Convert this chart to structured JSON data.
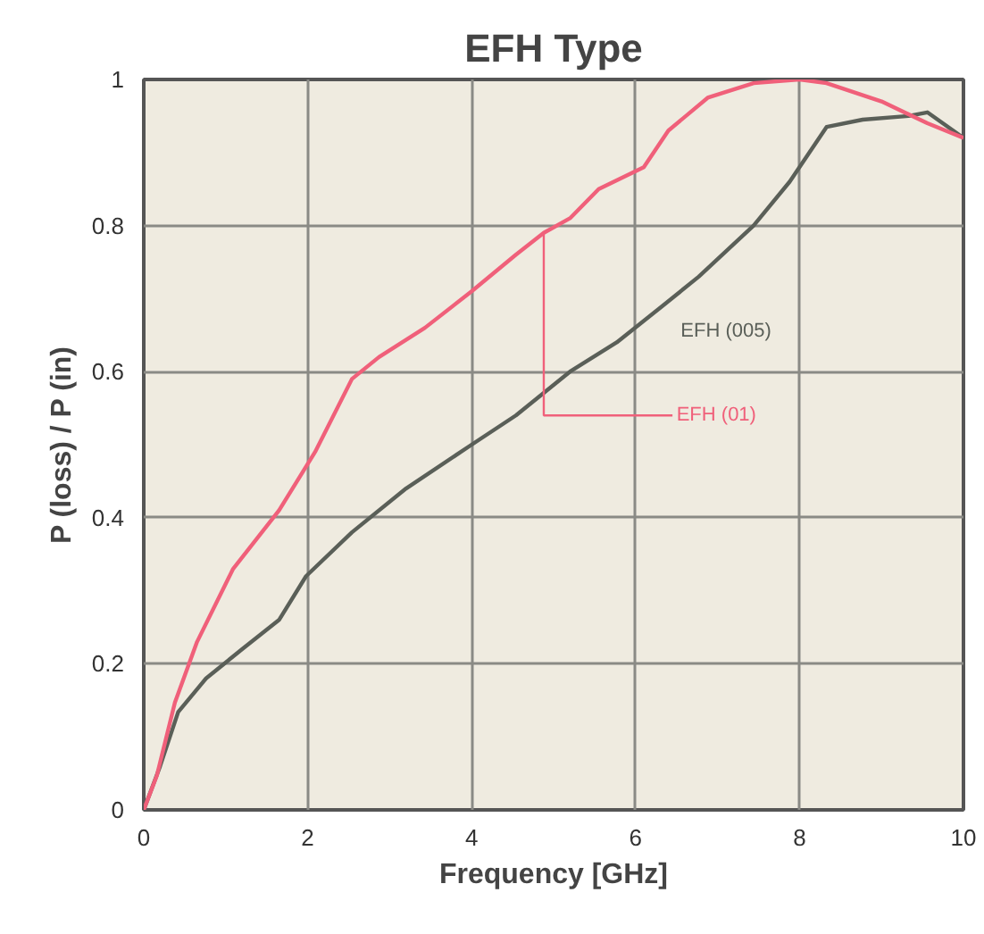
{
  "chart_data": {
    "type": "line",
    "title": "EFH Type",
    "xlabel": "Frequency [GHz]",
    "ylabel": "P (loss) / P (in)",
    "xlim": [
      0,
      10
    ],
    "ylim": [
      0,
      1
    ],
    "xticks": [
      0,
      2,
      4,
      6,
      8,
      10
    ],
    "yticks": [
      0,
      0.2,
      0.4,
      0.6,
      0.8,
      1
    ],
    "grid": true,
    "legend": false,
    "marker": "none",
    "line_style": "solid",
    "series": [
      {
        "name": "EFH (005)",
        "color": "#5a5f58",
        "x": [
          0,
          0.2,
          0.42,
          0.76,
          1.2,
          1.65,
          1.98,
          2.54,
          3.2,
          4.0,
          4.54,
          5.2,
          5.77,
          6.33,
          6.77,
          7.44,
          7.88,
          8.33,
          8.77,
          9.33,
          9.56,
          10
        ],
        "values": [
          0,
          0.06,
          0.134,
          0.18,
          0.22,
          0.26,
          0.32,
          0.38,
          0.44,
          0.5,
          0.54,
          0.6,
          0.64,
          0.69,
          0.73,
          0.8,
          0.86,
          0.935,
          0.945,
          0.95,
          0.955,
          0.92
        ]
      },
      {
        "name": "EFH (01)",
        "color": "#f0607a",
        "x": [
          0,
          0.16,
          0.38,
          0.65,
          1.09,
          1.65,
          2.09,
          2.54,
          2.87,
          3.43,
          4.0,
          4.54,
          4.88,
          5.2,
          5.55,
          6.1,
          6.4,
          6.88,
          7.44,
          8.0,
          8.33,
          9.0,
          9.56,
          10
        ],
        "values": [
          0,
          0.047,
          0.147,
          0.23,
          0.33,
          0.41,
          0.49,
          0.59,
          0.62,
          0.66,
          0.71,
          0.76,
          0.79,
          0.81,
          0.85,
          0.88,
          0.93,
          0.975,
          0.995,
          1.0,
          0.995,
          0.97,
          0.94,
          0.92
        ]
      }
    ]
  }
}
